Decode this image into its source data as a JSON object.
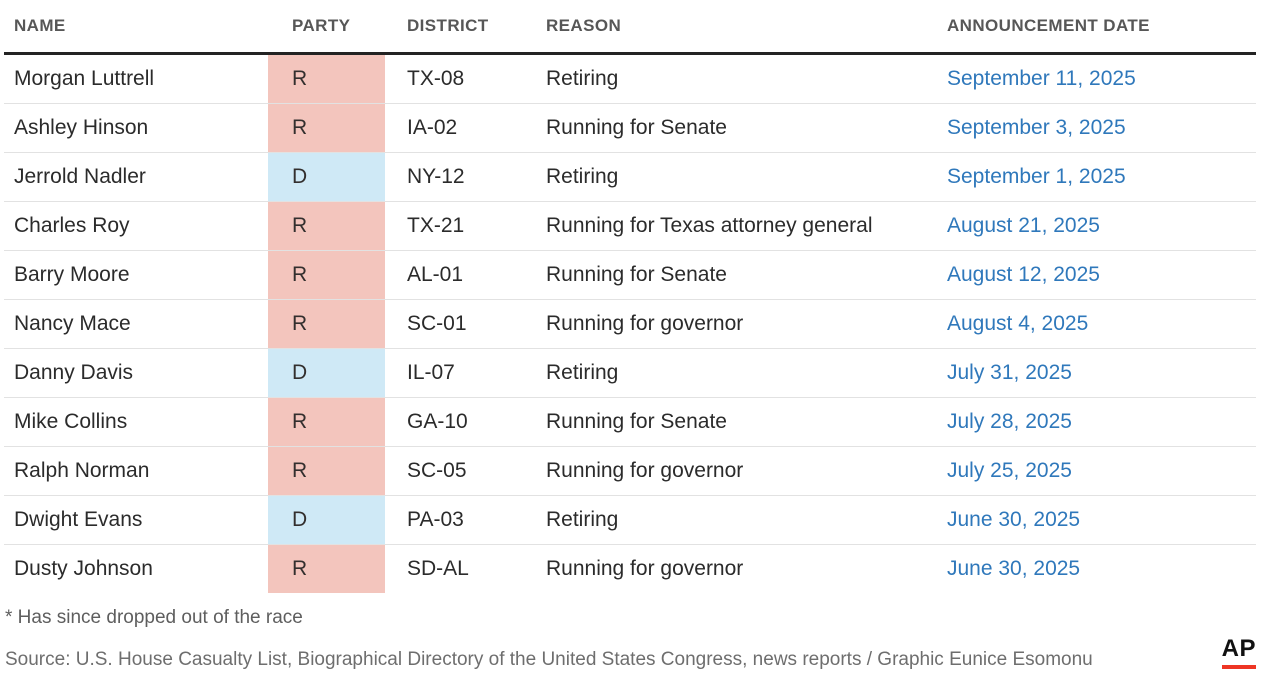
{
  "chart_data": {
    "type": "table",
    "columns": [
      "NAME",
      "PARTY",
      "DISTRICT",
      "REASON",
      "ANNOUNCEMENT DATE"
    ],
    "rows": [
      {
        "name": "Morgan Luttrell",
        "party": "R",
        "district": "TX-08",
        "reason": "Retiring",
        "date": "September 11, 2025"
      },
      {
        "name": "Ashley Hinson",
        "party": "R",
        "district": "IA-02",
        "reason": "Running for Senate",
        "date": "September 3, 2025"
      },
      {
        "name": "Jerrold Nadler",
        "party": "D",
        "district": "NY-12",
        "reason": "Retiring",
        "date": "September 1, 2025"
      },
      {
        "name": "Charles Roy",
        "party": "R",
        "district": "TX-21",
        "reason": "Running for Texas attorney general",
        "date": "August 21, 2025"
      },
      {
        "name": "Barry Moore",
        "party": "R",
        "district": "AL-01",
        "reason": "Running for Senate",
        "date": "August 12, 2025"
      },
      {
        "name": "Nancy Mace",
        "party": "R",
        "district": "SC-01",
        "reason": "Running for governor",
        "date": "August 4, 2025"
      },
      {
        "name": "Danny Davis",
        "party": "D",
        "district": "IL-07",
        "reason": "Retiring",
        "date": "July 31, 2025"
      },
      {
        "name": "Mike Collins",
        "party": "R",
        "district": "GA-10",
        "reason": "Running for Senate",
        "date": "July 28, 2025"
      },
      {
        "name": "Ralph Norman",
        "party": "R",
        "district": "SC-05",
        "reason": "Running for governor",
        "date": "July 25, 2025"
      },
      {
        "name": "Dwight Evans",
        "party": "D",
        "district": "PA-03",
        "reason": "Retiring",
        "date": "June 30, 2025"
      },
      {
        "name": "Dusty Johnson",
        "party": "R",
        "district": "SD-AL",
        "reason": "Running for governor",
        "date": "June 30, 2025"
      }
    ]
  },
  "footer": {
    "footnote": "* Has since dropped out of the race",
    "source": "Source: U.S. House Casualty List, Biographical Directory of the United States Congress, news reports / Graphic Eunice Esomonu",
    "logo_text": "AP"
  },
  "colors": {
    "republican_bg": "#f3c5bd",
    "democrat_bg": "#cfe9f6",
    "date_link_blue": "#2f78bb",
    "ap_red": "#ee3524",
    "header_rule": "#232323"
  }
}
